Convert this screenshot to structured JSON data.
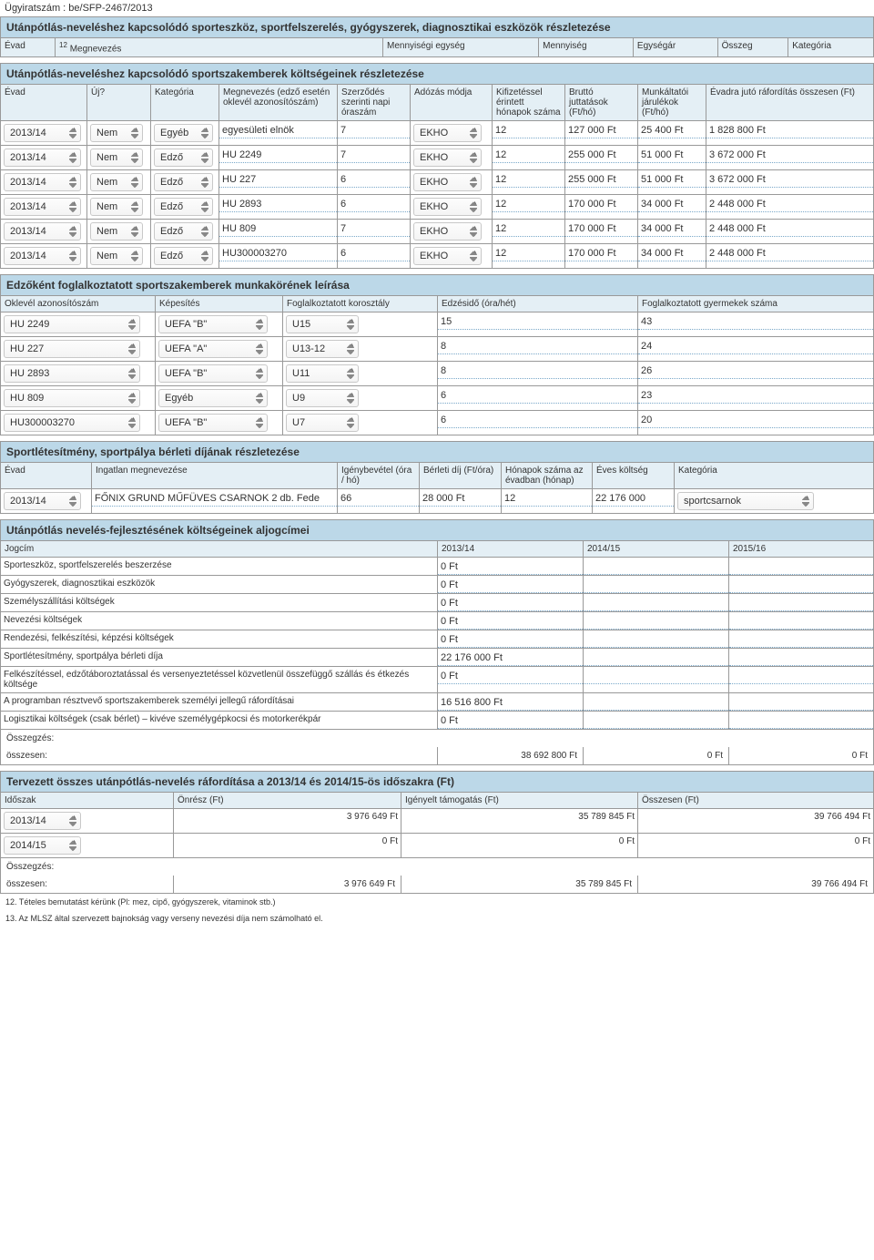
{
  "doc_number": "Ügyiratszám : be/SFP-2467/2013",
  "sec1": {
    "title": "Utánpótlás-neveléshez kapcsolódó sporteszköz, sportfelszerelés, gyógyszerek, diagnosztikai eszközök részletezése",
    "headers": [
      "Évad",
      "Megnevezés",
      "Mennyiségi egység",
      "Mennyiség",
      "Egységár",
      "Összeg",
      "Kategória"
    ],
    "note_sup": "12"
  },
  "sec2": {
    "title": "Utánpótlás-neveléshez kapcsolódó sportszakemberek költségeinek részletezése",
    "headers": [
      "Évad",
      "Új?",
      "Kategória",
      "Megnevezés (edző esetén oklevél azonosítószám)",
      "Szerződés szerinti napi óraszám",
      "Adózás módja",
      "Kifizetéssel érintett hónapok száma",
      "Bruttó juttatások (Ft/hó)",
      "Munkáltatói járulékok (Ft/hó)",
      "Évadra jutó ráfordítás összesen (Ft)"
    ],
    "rows": [
      {
        "ev": "2013/14",
        "uj": "Nem",
        "kat": "Egyéb",
        "meg": "egyesületi elnök",
        "ora": "7",
        "ado": "EKHO",
        "hon": "12",
        "brutto": "127 000 Ft",
        "jar": "25 400 Ft",
        "evra": "1 828 800 Ft"
      },
      {
        "ev": "2013/14",
        "uj": "Nem",
        "kat": "Edző",
        "meg": "HU 2249",
        "ora": "7",
        "ado": "EKHO",
        "hon": "12",
        "brutto": "255 000 Ft",
        "jar": "51 000 Ft",
        "evra": "3 672 000 Ft"
      },
      {
        "ev": "2013/14",
        "uj": "Nem",
        "kat": "Edző",
        "meg": "HU 227",
        "ora": "6",
        "ado": "EKHO",
        "hon": "12",
        "brutto": "255 000 Ft",
        "jar": "51 000 Ft",
        "evra": "3 672 000 Ft"
      },
      {
        "ev": "2013/14",
        "uj": "Nem",
        "kat": "Edző",
        "meg": "HU 2893",
        "ora": "6",
        "ado": "EKHO",
        "hon": "12",
        "brutto": "170 000 Ft",
        "jar": "34 000 Ft",
        "evra": "2 448 000 Ft"
      },
      {
        "ev": "2013/14",
        "uj": "Nem",
        "kat": "Edző",
        "meg": "HU 809",
        "ora": "7",
        "ado": "EKHO",
        "hon": "12",
        "brutto": "170 000 Ft",
        "jar": "34 000 Ft",
        "evra": "2 448 000 Ft"
      },
      {
        "ev": "2013/14",
        "uj": "Nem",
        "kat": "Edző",
        "meg": "HU300003270",
        "ora": "6",
        "ado": "EKHO",
        "hon": "12",
        "brutto": "170 000 Ft",
        "jar": "34 000 Ft",
        "evra": "2 448 000 Ft"
      }
    ]
  },
  "sec3": {
    "title": "Edzőként foglalkoztatott sportszakemberek munkakörének leírása",
    "headers": [
      "Oklevél azonosítószám",
      "Képesítés",
      "Foglalkoztatott korosztály",
      "Edzésidő (óra/hét)",
      "Foglalkoztatott gyermekek száma"
    ],
    "rows": [
      {
        "ok": "HU 2249",
        "kep": "UEFA \"B\"",
        "kor": "U15",
        "ido": "15",
        "gy": "43"
      },
      {
        "ok": "HU 227",
        "kep": "UEFA \"A\"",
        "kor": "U13-12",
        "ido": "8",
        "gy": "24"
      },
      {
        "ok": "HU 2893",
        "kep": "UEFA \"B\"",
        "kor": "U11",
        "ido": "8",
        "gy": "26"
      },
      {
        "ok": "HU 809",
        "kep": "Egyéb",
        "kor": "U9",
        "ido": "6",
        "gy": "23"
      },
      {
        "ok": "HU300003270",
        "kep": "UEFA \"B\"",
        "kor": "U7",
        "ido": "6",
        "gy": "20"
      }
    ]
  },
  "sec4": {
    "title": "Sportlétesítmény, sportpálya bérleti díjának részletezése",
    "headers": [
      "Évad",
      "Ingatlan megnevezése",
      "Igénybevétel (óra / hó)",
      "Bérleti díj (Ft/óra)",
      "Hónapok száma az évadban (hónap)",
      "Éves költség",
      "Kategória"
    ],
    "rows": [
      {
        "ev": "2013/14",
        "ing": "FŐNIX GRUND MŰFÜVES CSARNOK 2 db. Fede",
        "ig": "66",
        "ber": "28 000 Ft",
        "hon": "12",
        "evkolt": "22 176 000",
        "kat": "sportcsarnok"
      }
    ]
  },
  "sec5": {
    "title": "Utánpótlás nevelés-fejlesztésének költségeinek aljogcímei",
    "headers": [
      "Jogcím",
      "2013/14",
      "2014/15",
      "2015/16"
    ],
    "rows": [
      {
        "j": "Sporteszköz, sportfelszerelés beszerzése",
        "v1": "0 Ft",
        "v2": "",
        "v3": ""
      },
      {
        "j": "Gyógyszerek, diagnosztikai eszközök",
        "v1": "0 Ft",
        "v2": "",
        "v3": ""
      },
      {
        "j": "Személyszállítási költségek",
        "v1": "0 Ft",
        "v2": "",
        "v3": ""
      },
      {
        "j": "Nevezési költségek",
        "v1": "0 Ft",
        "v2": "",
        "v3": ""
      },
      {
        "j": "Rendezési, felkészítési, képzési költségek",
        "v1": "0 Ft",
        "v2": "",
        "v3": ""
      },
      {
        "j": "Sportlétesítmény, sportpálya bérleti díja",
        "v1": "22 176 000 Ft",
        "v2": "",
        "v3": ""
      },
      {
        "j": "Felkészítéssel, edzőtáboroztatással és versenyeztetéssel közvetlenül összefüggő szállás és étkezés költsége",
        "v1": "0 Ft",
        "v2": "",
        "v3": ""
      },
      {
        "j": "A programban résztvevő sportszakemberek személyi jellegű ráfordításai",
        "v1": "16 516 800 Ft",
        "v2": "",
        "v3": ""
      },
      {
        "j": "Logisztikai költségek (csak bérlet) – kivéve személygépkocsi és motorkerékpár",
        "v1": "0 Ft",
        "v2": "",
        "v3": ""
      }
    ],
    "sum_label": "Összegzés:",
    "sum_word": "összesen:",
    "sum_vals": [
      "38 692 800 Ft",
      "0 Ft",
      "0 Ft"
    ]
  },
  "sec6": {
    "title": "Tervezett összes utánpótlás-nevelés ráfordítása a 2013/14 és 2014/15-ös időszakra (Ft)",
    "headers": [
      "Időszak",
      "Önrész (Ft)",
      "Igényelt támogatás (Ft)",
      "Összesen (Ft)"
    ],
    "rows": [
      {
        "ido": "2013/14",
        "onr": "3 976 649 Ft",
        "ig": "35 789 845 Ft",
        "ossz": "39 766 494 Ft"
      },
      {
        "ido": "2014/15",
        "onr": "0 Ft",
        "ig": "0 Ft",
        "ossz": "0 Ft"
      }
    ],
    "sum_label": "Összegzés:",
    "sum_word": "összesen:",
    "sum_vals": [
      "3 976 649 Ft",
      "35 789 845 Ft",
      "39 766 494 Ft"
    ]
  },
  "footnotes": [
    "12. Tételes bemutatást kérünk (Pl: mez, cipő, gyógyszerek, vitaminok stb.)",
    "13. Az MLSZ által szervezett bajnokság vagy verseny nevezési díja nem számolható el."
  ]
}
